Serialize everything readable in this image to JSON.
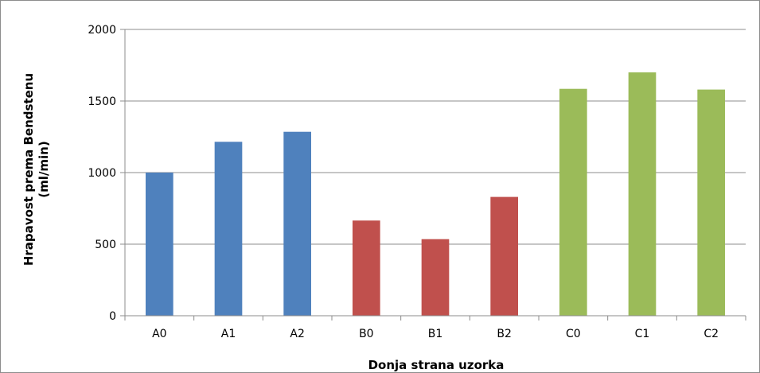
{
  "chart_data": {
    "type": "bar",
    "title": "",
    "xlabel": "Donja strana uzorka",
    "ylabel_line1": "Hrapavost prema Bendstenu",
    "ylabel_line2": "(ml/min)",
    "categories": [
      "A0",
      "A1",
      "A2",
      "B0",
      "B1",
      "B2",
      "C0",
      "C1",
      "C2"
    ],
    "values": [
      1000,
      1215,
      1285,
      665,
      535,
      830,
      1585,
      1700,
      1580
    ],
    "bar_colors": [
      "#4f81bd",
      "#4f81bd",
      "#4f81bd",
      "#c0504d",
      "#c0504d",
      "#c0504d",
      "#9bbb59",
      "#9bbb59",
      "#9bbb59"
    ],
    "ylim": [
      0,
      2000
    ],
    "yticks": [
      0,
      500,
      1000,
      1500,
      2000
    ],
    "ytick_labels": [
      "0",
      "500",
      "1000",
      "1500",
      "2000"
    ],
    "grid": true,
    "legend": false
  }
}
